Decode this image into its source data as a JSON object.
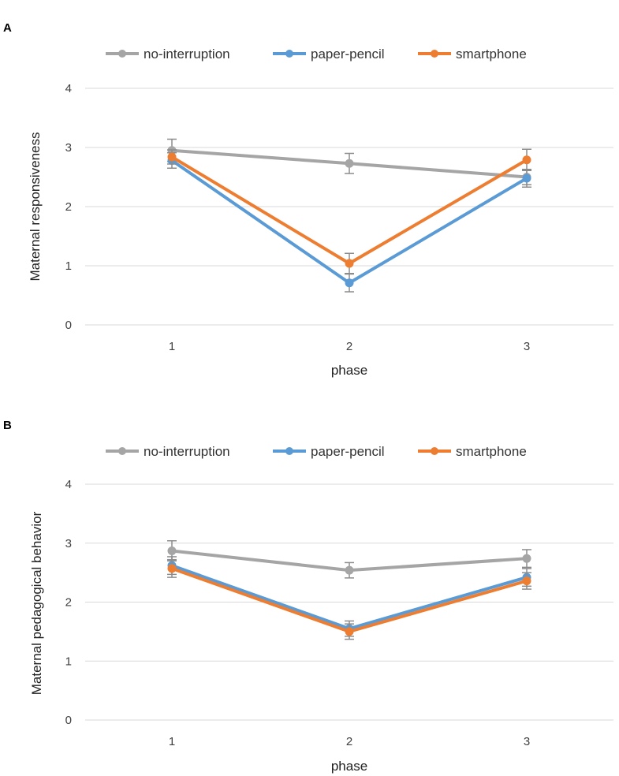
{
  "colors": {
    "no-interruption": "#a5a5a5",
    "paper-pencil": "#5b9bd5",
    "smartphone": "#ed7d31",
    "errorbar": "#8c8c8c"
  },
  "chart_data": [
    {
      "panel": "A",
      "type": "line",
      "x": [
        1,
        2,
        3
      ],
      "categories": [
        "1",
        "2",
        "3"
      ],
      "xlabel": "phase",
      "ylabel": "Maternal responsiveness",
      "ylim": [
        0,
        4
      ],
      "yticks": [
        "0",
        "1",
        "2",
        "3",
        "4"
      ],
      "legend": [
        "no-interruption",
        "paper-pencil",
        "smartphone"
      ],
      "legend_position": "top",
      "series": [
        {
          "name": "no-interruption",
          "values": [
            2.95,
            2.73,
            2.5
          ],
          "errors": [
            0.19,
            0.17,
            0.13
          ]
        },
        {
          "name": "paper-pencil",
          "values": [
            2.78,
            0.71,
            2.48
          ],
          "errors": [
            0.13,
            0.15,
            0.15
          ]
        },
        {
          "name": "smartphone",
          "values": [
            2.84,
            1.04,
            2.79
          ],
          "errors": [
            0.12,
            0.17,
            0.18
          ]
        }
      ]
    },
    {
      "panel": "B",
      "type": "line",
      "x": [
        1,
        2,
        3
      ],
      "categories": [
        "1",
        "2",
        "3"
      ],
      "xlabel": "phase",
      "ylabel": "Maternal pedagogical behavior",
      "ylim": [
        0,
        4
      ],
      "yticks": [
        "0",
        "1",
        "2",
        "3",
        "4"
      ],
      "legend": [
        "no-interruption",
        "paper-pencil",
        "smartphone"
      ],
      "legend_position": "top",
      "series": [
        {
          "name": "no-interruption",
          "values": [
            2.87,
            2.54,
            2.74
          ],
          "errors": [
            0.17,
            0.13,
            0.15
          ]
        },
        {
          "name": "paper-pencil",
          "values": [
            2.62,
            1.55,
            2.42
          ],
          "errors": [
            0.15,
            0.13,
            0.15
          ]
        },
        {
          "name": "smartphone",
          "values": [
            2.57,
            1.5,
            2.36
          ],
          "errors": [
            0.15,
            0.13,
            0.14
          ]
        }
      ]
    }
  ]
}
